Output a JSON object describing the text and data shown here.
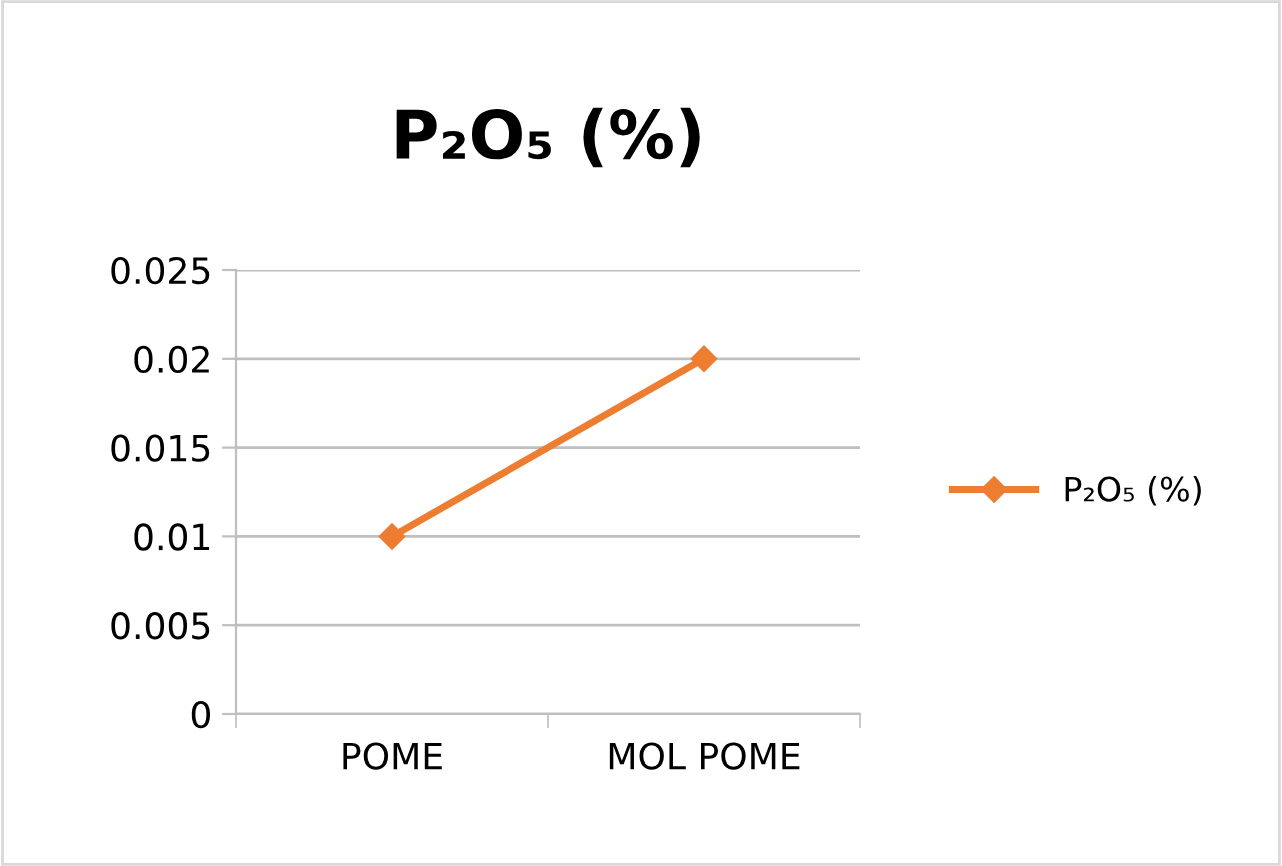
{
  "chart_data": {
    "type": "line",
    "title": "P₂O₅ (%)",
    "categories": [
      "POME",
      "MOL POME"
    ],
    "series": [
      {
        "name": "P₂O₅ (%)",
        "color": "#ed7d31",
        "values": [
          0.01,
          0.02
        ]
      }
    ],
    "ylim": [
      0,
      0.025
    ],
    "yticks": [
      {
        "value": 0,
        "label": "0"
      },
      0.005,
      0.01,
      0.015,
      0.02,
      0.025
    ],
    "grid": "y",
    "legend": "right",
    "marker": "diamond",
    "line_style": "solid"
  }
}
